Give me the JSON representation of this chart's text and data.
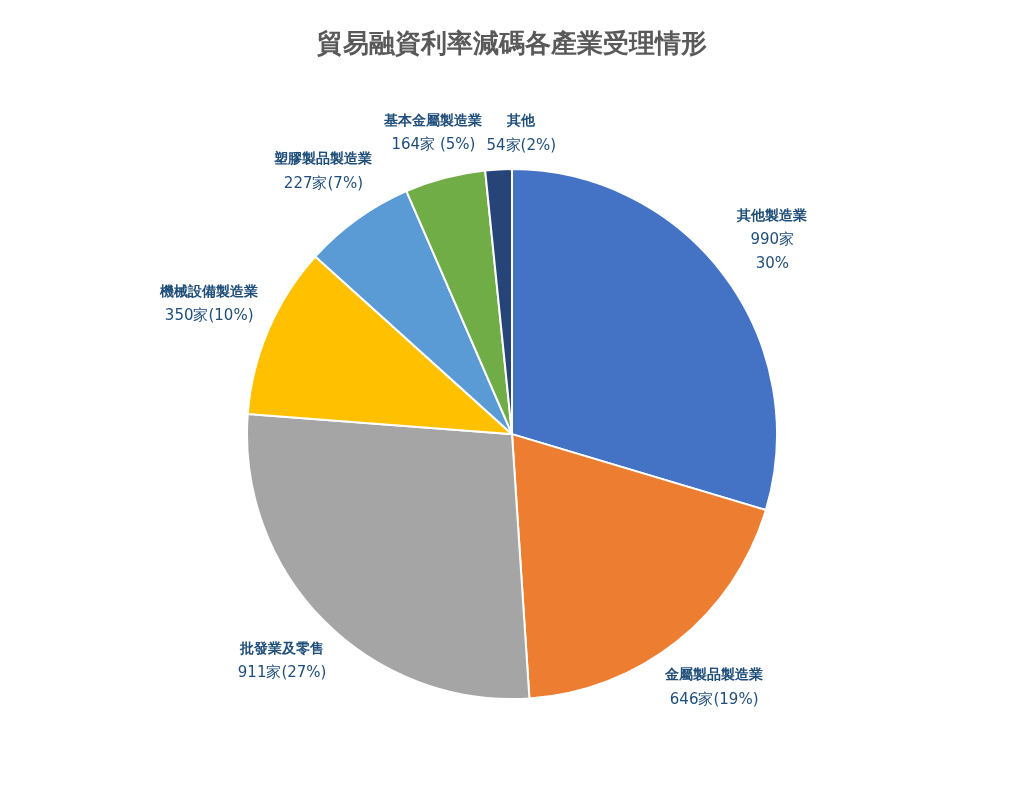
{
  "chart_data": {
    "type": "pie",
    "title": "貿易融資利率減碼各產業受理情形",
    "categories": [
      "其他製造業",
      "金屬製品製造業",
      "批發業及零售",
      "機械設備製造業",
      "塑膠製品製造業",
      "基本金屬製造業",
      "其他"
    ],
    "values": [
      990,
      646,
      911,
      350,
      227,
      164,
      54
    ],
    "colors": [
      "#4472c4",
      "#ed7d31",
      "#a5a5a5",
      "#ffc000",
      "#5b9bd5",
      "#70ad47",
      "#264478"
    ],
    "value_labels": [
      "990家\n30%",
      "646家(19%)",
      "911家(27%)",
      "350家(10%)",
      "227家(7%)",
      "164家 (5%)",
      "54家(2%)"
    ]
  }
}
